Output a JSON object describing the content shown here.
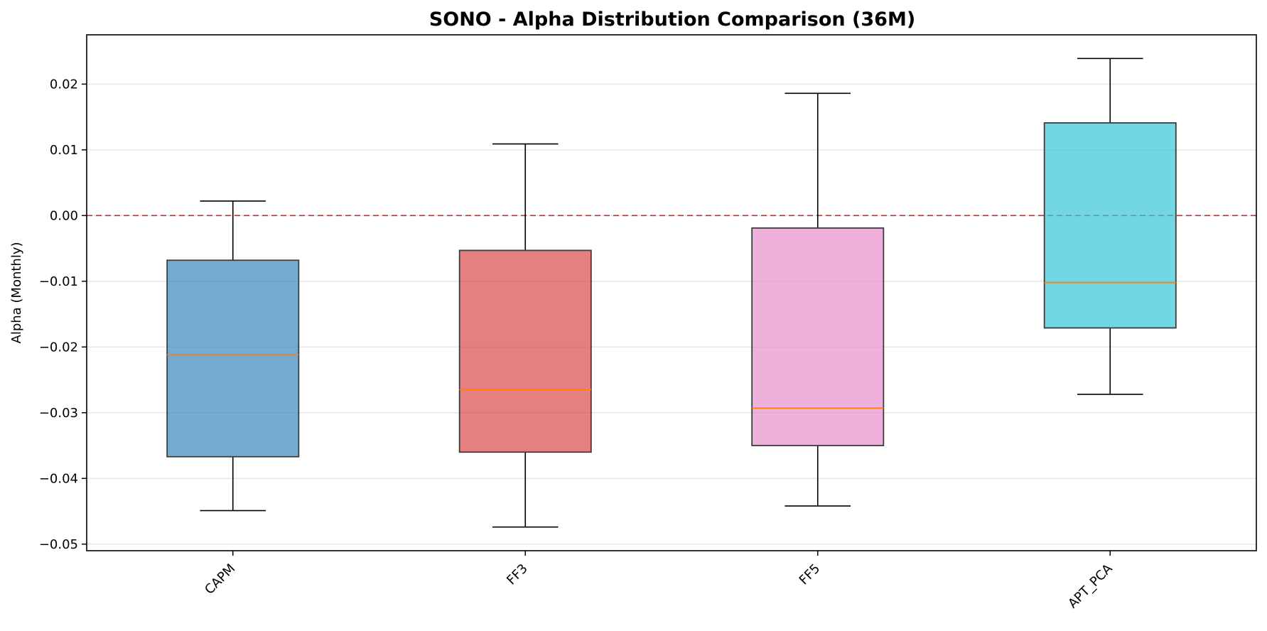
{
  "chart_data": {
    "type": "box",
    "title": "SONO - Alpha Distribution Comparison (36M)",
    "xlabel": "",
    "ylabel": "Alpha (Monthly)",
    "ylim": [
      -0.051,
      0.0275
    ],
    "yticks": [
      0.02,
      0.01,
      0.0,
      -0.01,
      -0.02,
      -0.03,
      -0.04,
      -0.05
    ],
    "ytick_labels": [
      "0.02",
      "0.01",
      "0.00",
      "−0.01",
      "−0.02",
      "−0.03",
      "−0.04",
      "−0.05"
    ],
    "grid": "horizontal",
    "reference_line": {
      "y": 0.0,
      "color": "#d62728",
      "style": "dashed"
    },
    "median_color": "#ff7f0e",
    "categories": [
      "CAPM",
      "FF3",
      "FF5",
      "APT_PCA"
    ],
    "boxes": [
      {
        "label": "CAPM",
        "whisker_low": -0.0449,
        "q1": -0.0367,
        "median": -0.0212,
        "q3": -0.0068,
        "whisker_high": 0.0022,
        "color": "#3a87be"
      },
      {
        "label": "FF3",
        "whisker_low": -0.0474,
        "q1": -0.036,
        "median": -0.0265,
        "q3": -0.0053,
        "whisker_high": 0.0109,
        "color": "#dc4848"
      },
      {
        "label": "FF5",
        "whisker_low": -0.0442,
        "q1": -0.035,
        "median": -0.0293,
        "q3": -0.0019,
        "whisker_high": 0.0186,
        "color": "#e88ecd"
      },
      {
        "label": "APT_PCA",
        "whisker_low": -0.0272,
        "q1": -0.0171,
        "median": -0.0102,
        "q3": 0.0141,
        "whisker_high": 0.0239,
        "color": "#34c6d6"
      }
    ]
  }
}
